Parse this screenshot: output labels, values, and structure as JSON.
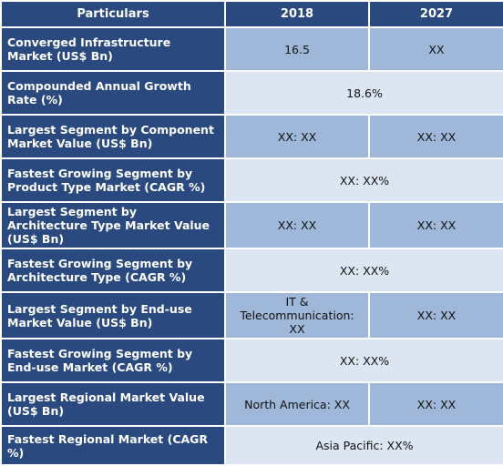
{
  "chart_data": {
    "type": "table",
    "columns": [
      "Particulars",
      "2018",
      "2027"
    ],
    "rows": [
      {
        "label": "Converged Infrastructure Market (US$ Bn)",
        "cells": [
          "16.5",
          "XX"
        ]
      },
      {
        "label": "Compounded Annual Growth Rate (%)",
        "cells": [
          "18.6%"
        ]
      },
      {
        "label": "Largest Segment by Component Market Value (US$ Bn)",
        "cells": [
          "XX: XX",
          "XX: XX"
        ]
      },
      {
        "label": "Fastest Growing Segment by Product Type Market (CAGR %)",
        "cells": [
          "XX: XX%"
        ]
      },
      {
        "label": "Largest Segment by Architecture Type Market Value (US$ Bn)",
        "cells": [
          "XX: XX",
          "XX: XX"
        ]
      },
      {
        "label": "Fastest Growing Segment by Architecture Type (CAGR %)",
        "cells": [
          "XX: XX%"
        ]
      },
      {
        "label": "Largest Segment by End-use Market Value (US$ Bn)",
        "cells": [
          "IT & Telecommunication: XX",
          "XX: XX"
        ]
      },
      {
        "label": "Fastest Growing Segment by End-use Market (CAGR %)",
        "cells": [
          "XX: XX%"
        ]
      },
      {
        "label": "Largest Regional Market Value (US$ Bn)",
        "cells": [
          "North America: XX",
          "XX: XX"
        ]
      },
      {
        "label": "Fastest Regional Market (CAGR %)",
        "cells": [
          "Asia Pacific: XX%"
        ]
      }
    ],
    "colors": {
      "header": "#2a4a7f",
      "cell_dark": "#9fb7d8",
      "cell_light": "#dce6f2"
    }
  }
}
